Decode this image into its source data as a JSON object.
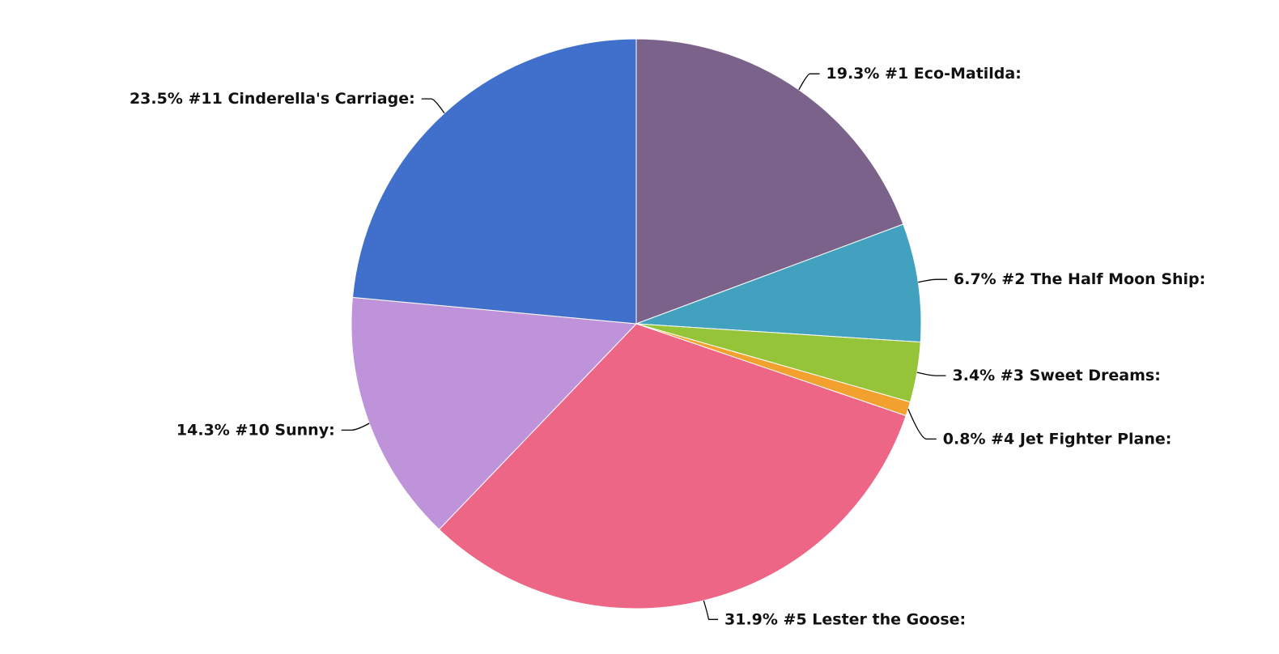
{
  "chart_data": {
    "type": "pie",
    "slices": [
      {
        "label": "#1 Eco-Matilda:",
        "percent_label": "19.3%",
        "value": 19.3,
        "color": "#7b628b"
      },
      {
        "label": "#2 The Half Moon Ship:",
        "percent_label": "6.7%",
        "value": 6.7,
        "color": "#43a1c0"
      },
      {
        "label": "#3 Sweet Dreams:",
        "percent_label": "3.4%",
        "value": 3.4,
        "color": "#95c438"
      },
      {
        "label": "#4 Jet Fighter Plane:",
        "percent_label": "0.8%",
        "value": 0.8,
        "color": "#f3a12e"
      },
      {
        "label": "#5 Lester the Goose:",
        "percent_label": "31.9%",
        "value": 31.9,
        "color": "#ed6685"
      },
      {
        "label": "#10 Sunny:",
        "percent_label": "14.3%",
        "value": 14.3,
        "color": "#be93d9"
      },
      {
        "label": "#11 Cinderella's Carriage:",
        "percent_label": "23.5%",
        "value": 23.5,
        "color": "#4070cb"
      }
    ],
    "start_angle": "top",
    "direction": "clockwise",
    "legend": "none"
  }
}
